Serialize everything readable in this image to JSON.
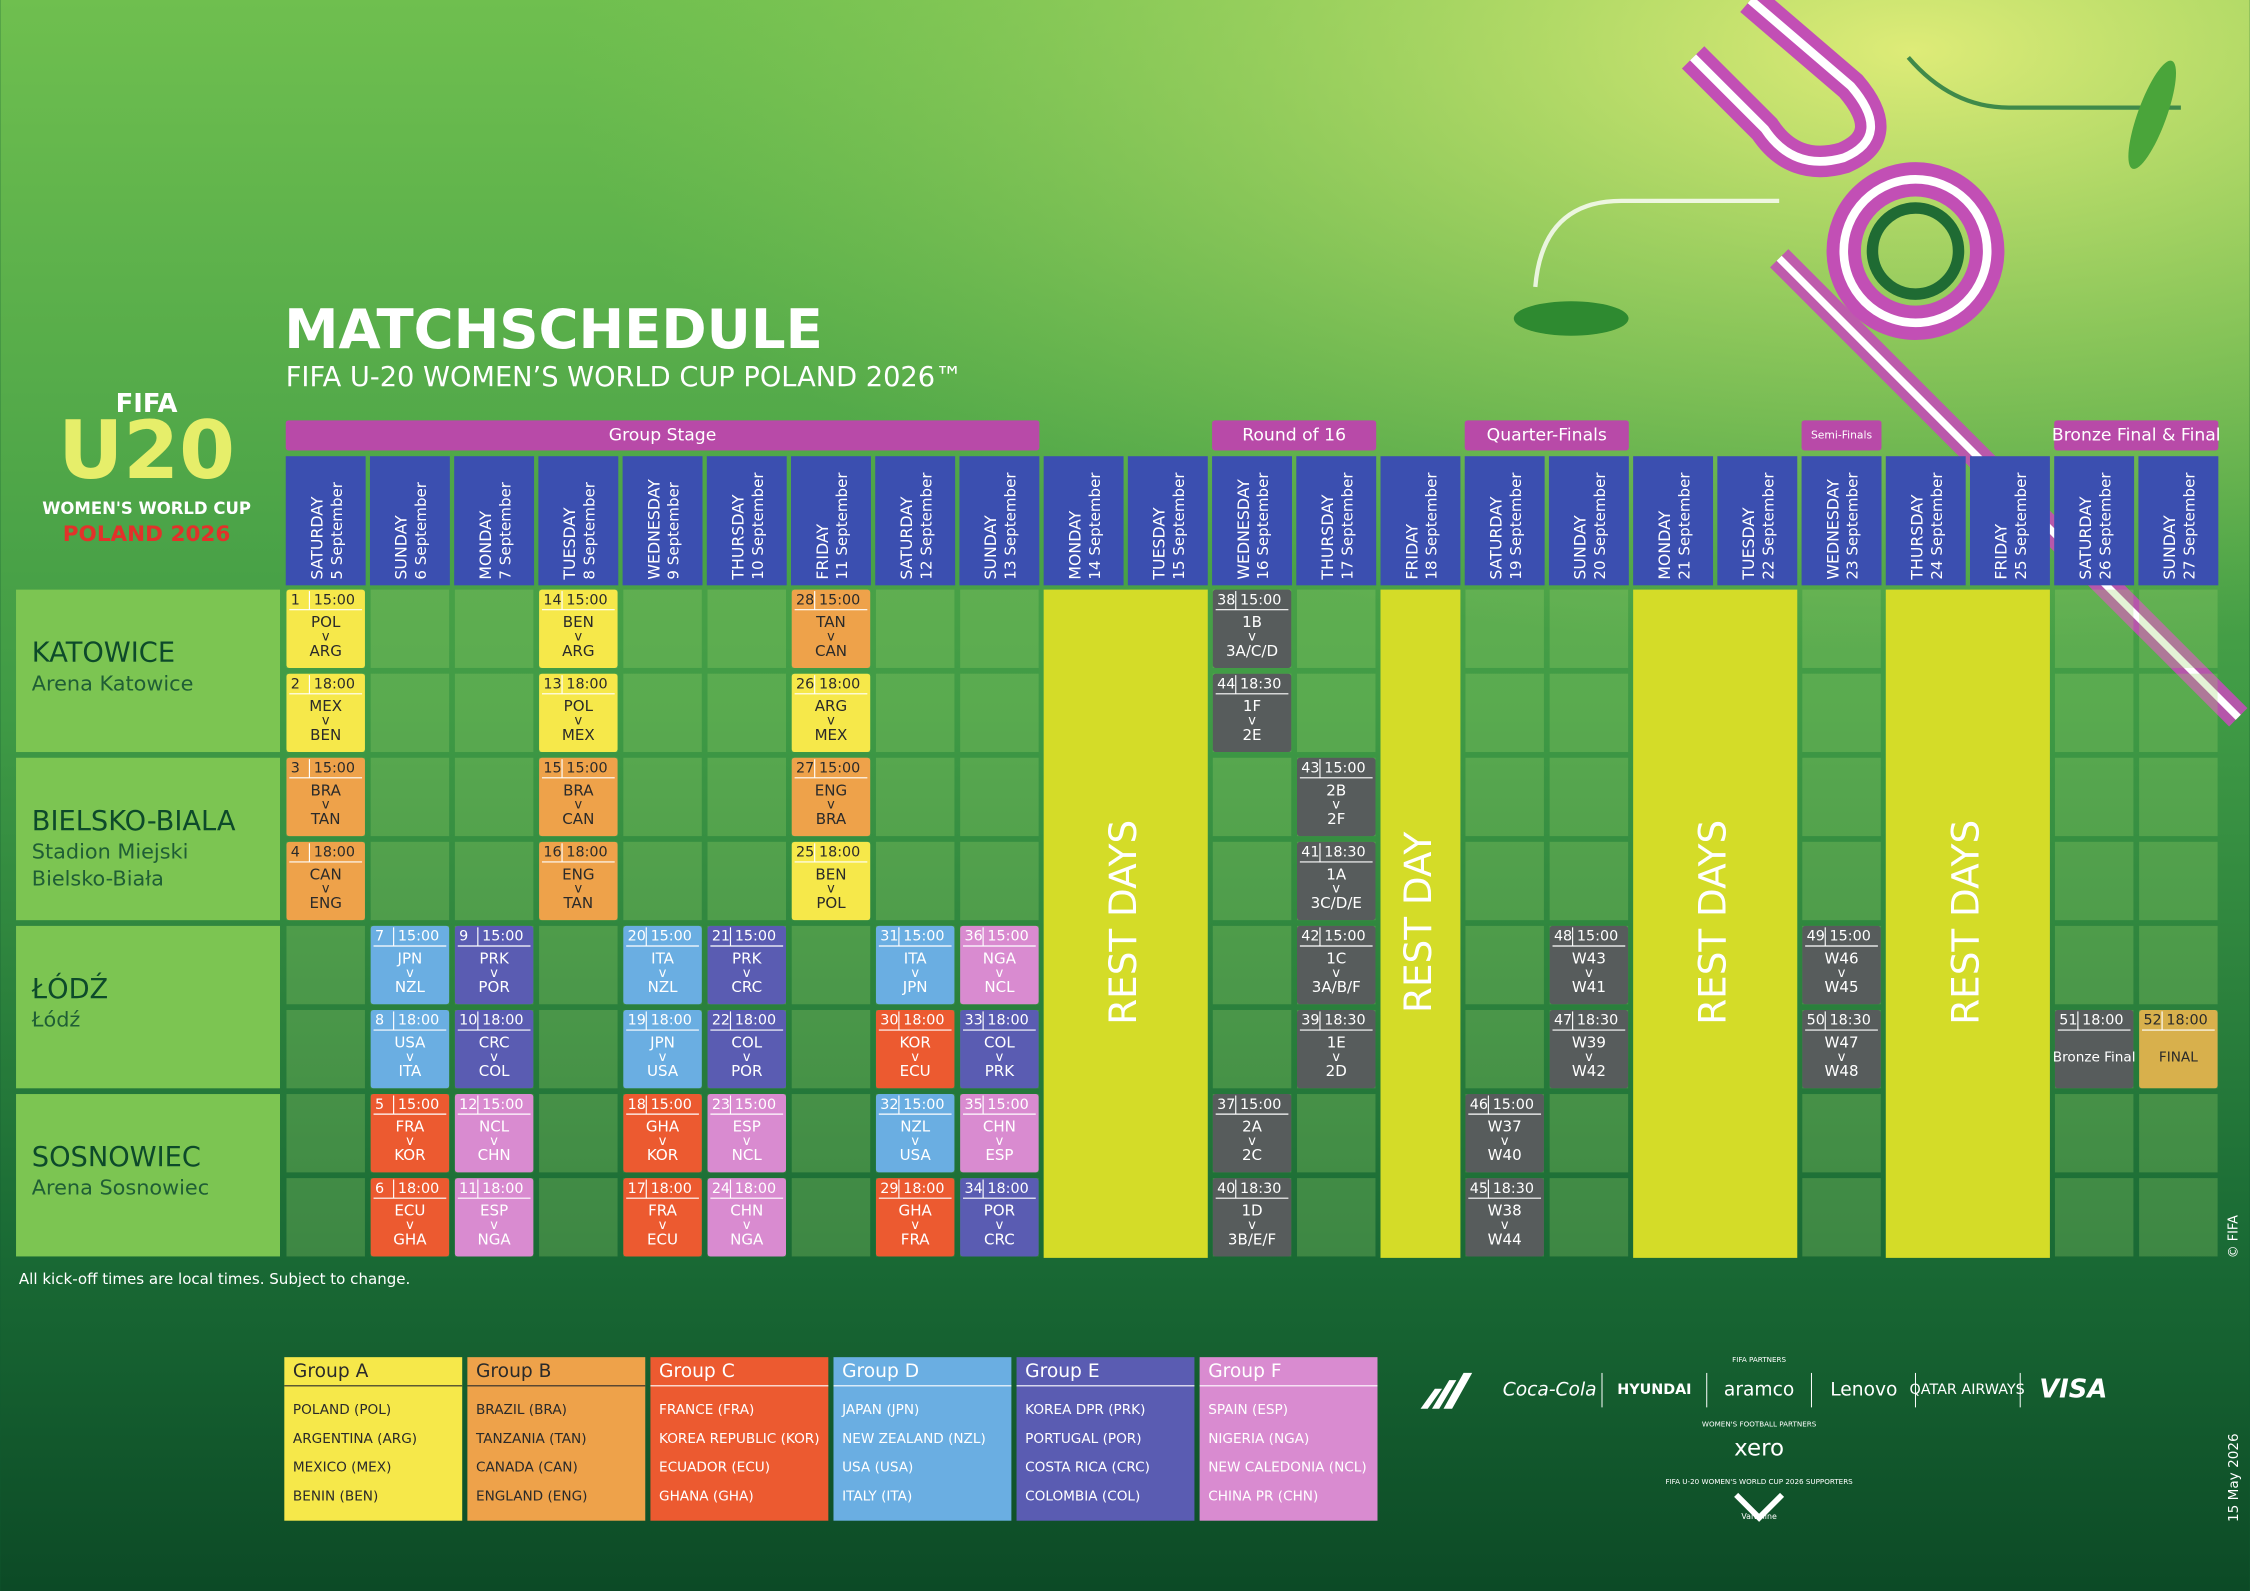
{
  "header": {
    "title": "MATCHSCHEDULE",
    "subtitle": "FIFA U-20 WOMEN’S WORLD CUP POLAND 2026™"
  },
  "logo": {
    "fifa": "FIFA",
    "u20": "U20",
    "event": "WOMEN'S WORLD CUP",
    "host": "POLAND 2026"
  },
  "versus": "v",
  "stages": [
    {
      "name": "Group Stage",
      "from": 0,
      "to": 8
    },
    {
      "name": "Round of 16",
      "from": 11,
      "to": 12
    },
    {
      "name": "Quarter-Finals",
      "from": 14,
      "to": 15
    },
    {
      "name": "Semi-Finals",
      "from": 18,
      "to": 18
    },
    {
      "name": "Bronze Final & Final",
      "from": 21,
      "to": 22
    }
  ],
  "days": [
    {
      "weekday": "SATURDAY",
      "date": "5 September"
    },
    {
      "weekday": "SUNDAY",
      "date": "6 September"
    },
    {
      "weekday": "MONDAY",
      "date": "7 September"
    },
    {
      "weekday": "TUESDAY",
      "date": "8 September"
    },
    {
      "weekday": "WEDNESDAY",
      "date": "9 September"
    },
    {
      "weekday": "THURSDAY",
      "date": "10 September"
    },
    {
      "weekday": "FRIDAY",
      "date": "11 September"
    },
    {
      "weekday": "SATURDAY",
      "date": "12 September"
    },
    {
      "weekday": "SUNDAY",
      "date": "13 September"
    },
    {
      "weekday": "MONDAY",
      "date": "14 September"
    },
    {
      "weekday": "TUESDAY",
      "date": "15 September"
    },
    {
      "weekday": "WEDNESDAY",
      "date": "16 September"
    },
    {
      "weekday": "THURSDAY",
      "date": "17 September"
    },
    {
      "weekday": "FRIDAY",
      "date": "18 September"
    },
    {
      "weekday": "SATURDAY",
      "date": "19 September"
    },
    {
      "weekday": "SUNDAY",
      "date": "20 September"
    },
    {
      "weekday": "MONDAY",
      "date": "21 September"
    },
    {
      "weekday": "TUESDAY",
      "date": "22 September"
    },
    {
      "weekday": "WEDNESDAY",
      "date": "23 September"
    },
    {
      "weekday": "THURSDAY",
      "date": "24 September"
    },
    {
      "weekday": "FRIDAY",
      "date": "25 September"
    },
    {
      "weekday": "SATURDAY",
      "date": "26 September"
    },
    {
      "weekday": "SUNDAY",
      "date": "27 September"
    }
  ],
  "venues": [
    {
      "name": "KATOWICE",
      "stadium": [
        "Arena Katowice"
      ]
    },
    {
      "name": "BIELSKO-BIALA",
      "stadium": [
        "Stadion Miejski",
        "Bielsko-Biała"
      ]
    },
    {
      "name": "ŁÓDŹ",
      "stadium": [
        "Łódź"
      ]
    },
    {
      "name": "SOSNOWIEC",
      "stadium": [
        "Arena Sosnowiec"
      ]
    }
  ],
  "rest": [
    {
      "label": "REST DAYS",
      "from": 9,
      "to": 10
    },
    {
      "label": "REST DAY",
      "from": 13,
      "to": 13
    },
    {
      "label": "REST DAYS",
      "from": 16,
      "to": 17
    },
    {
      "label": "REST DAYS",
      "from": 19,
      "to": 20
    }
  ],
  "knockout_color": "#575c5c",
  "matches": [
    {
      "no": 1,
      "time": "15:00",
      "home": "POL",
      "away": "ARG",
      "group": 0,
      "day": 0,
      "venue": 0,
      "slot": 0
    },
    {
      "no": 2,
      "time": "18:00",
      "home": "MEX",
      "away": "BEN",
      "group": 0,
      "day": 0,
      "venue": 0,
      "slot": 1
    },
    {
      "no": 3,
      "time": "15:00",
      "home": "BRA",
      "away": "TAN",
      "group": 1,
      "day": 0,
      "venue": 1,
      "slot": 0
    },
    {
      "no": 4,
      "time": "18:00",
      "home": "CAN",
      "away": "ENG",
      "group": 1,
      "day": 0,
      "venue": 1,
      "slot": 1
    },
    {
      "no": 7,
      "time": "15:00",
      "home": "JPN",
      "away": "NZL",
      "group": 3,
      "day": 1,
      "venue": 2,
      "slot": 0
    },
    {
      "no": 8,
      "time": "18:00",
      "home": "USA",
      "away": "ITA",
      "group": 3,
      "day": 1,
      "venue": 2,
      "slot": 1
    },
    {
      "no": 5,
      "time": "15:00",
      "home": "FRA",
      "away": "KOR",
      "group": 2,
      "day": 1,
      "venue": 3,
      "slot": 0
    },
    {
      "no": 6,
      "time": "18:00",
      "home": "ECU",
      "away": "GHA",
      "group": 2,
      "day": 1,
      "venue": 3,
      "slot": 1
    },
    {
      "no": 9,
      "time": "15:00",
      "home": "PRK",
      "away": "POR",
      "group": 4,
      "day": 2,
      "venue": 2,
      "slot": 0
    },
    {
      "no": 10,
      "time": "18:00",
      "home": "CRC",
      "away": "COL",
      "group": 4,
      "day": 2,
      "venue": 2,
      "slot": 1
    },
    {
      "no": 12,
      "time": "15:00",
      "home": "NCL",
      "away": "CHN",
      "group": 5,
      "day": 2,
      "venue": 3,
      "slot": 0
    },
    {
      "no": 11,
      "time": "18:00",
      "home": "ESP",
      "away": "NGA",
      "group": 5,
      "day": 2,
      "venue": 3,
      "slot": 1
    },
    {
      "no": 14,
      "time": "15:00",
      "home": "BEN",
      "away": "ARG",
      "group": 0,
      "day": 3,
      "venue": 0,
      "slot": 0
    },
    {
      "no": 13,
      "time": "18:00",
      "home": "POL",
      "away": "MEX",
      "group": 0,
      "day": 3,
      "venue": 0,
      "slot": 1
    },
    {
      "no": 15,
      "time": "15:00",
      "home": "BRA",
      "away": "CAN",
      "group": 1,
      "day": 3,
      "venue": 1,
      "slot": 0
    },
    {
      "no": 16,
      "time": "18:00",
      "home": "ENG",
      "away": "TAN",
      "group": 1,
      "day": 3,
      "venue": 1,
      "slot": 1
    },
    {
      "no": 20,
      "time": "15:00",
      "home": "ITA",
      "away": "NZL",
      "group": 3,
      "day": 4,
      "venue": 2,
      "slot": 0
    },
    {
      "no": 19,
      "time": "18:00",
      "home": "JPN",
      "away": "USA",
      "group": 3,
      "day": 4,
      "venue": 2,
      "slot": 1
    },
    {
      "no": 18,
      "time": "15:00",
      "home": "GHA",
      "away": "KOR",
      "group": 2,
      "day": 4,
      "venue": 3,
      "slot": 0
    },
    {
      "no": 17,
      "time": "18:00",
      "home": "FRA",
      "away": "ECU",
      "group": 2,
      "day": 4,
      "venue": 3,
      "slot": 1
    },
    {
      "no": 21,
      "time": "15:00",
      "home": "PRK",
      "away": "CRC",
      "group": 4,
      "day": 5,
      "venue": 2,
      "slot": 0
    },
    {
      "no": 22,
      "time": "18:00",
      "home": "COL",
      "away": "POR",
      "group": 4,
      "day": 5,
      "venue": 2,
      "slot": 1
    },
    {
      "no": 23,
      "time": "15:00",
      "home": "ESP",
      "away": "NCL",
      "group": 5,
      "day": 5,
      "venue": 3,
      "slot": 0
    },
    {
      "no": 24,
      "time": "18:00",
      "home": "CHN",
      "away": "NGA",
      "group": 5,
      "day": 5,
      "venue": 3,
      "slot": 1
    },
    {
      "no": 28,
      "time": "15:00",
      "home": "TAN",
      "away": "CAN",
      "group": 1,
      "day": 6,
      "venue": 0,
      "slot": 0
    },
    {
      "no": 26,
      "time": "18:00",
      "home": "ARG",
      "away": "MEX",
      "group": 0,
      "day": 6,
      "venue": 0,
      "slot": 1
    },
    {
      "no": 27,
      "time": "15:00",
      "home": "ENG",
      "away": "BRA",
      "group": 1,
      "day": 6,
      "venue": 1,
      "slot": 0
    },
    {
      "no": 25,
      "time": "18:00",
      "home": "BEN",
      "away": "POL",
      "group": 0,
      "day": 6,
      "venue": 1,
      "slot": 1
    },
    {
      "no": 31,
      "time": "15:00",
      "home": "ITA",
      "away": "JPN",
      "group": 3,
      "day": 7,
      "venue": 2,
      "slot": 0
    },
    {
      "no": 30,
      "time": "18:00",
      "home": "KOR",
      "away": "ECU",
      "group": 2,
      "day": 7,
      "venue": 2,
      "slot": 1
    },
    {
      "no": 32,
      "time": "15:00",
      "home": "NZL",
      "away": "USA",
      "group": 3,
      "day": 7,
      "venue": 3,
      "slot": 0
    },
    {
      "no": 29,
      "time": "18:00",
      "home": "GHA",
      "away": "FRA",
      "group": 2,
      "day": 7,
      "venue": 3,
      "slot": 1
    },
    {
      "no": 36,
      "time": "15:00",
      "home": "NGA",
      "away": "NCL",
      "group": 5,
      "day": 8,
      "venue": 2,
      "slot": 0
    },
    {
      "no": 33,
      "time": "18:00",
      "home": "COL",
      "away": "PRK",
      "group": 4,
      "day": 8,
      "venue": 2,
      "slot": 1
    },
    {
      "no": 35,
      "time": "15:00",
      "home": "CHN",
      "away": "ESP",
      "group": 5,
      "day": 8,
      "venue": 3,
      "slot": 0
    },
    {
      "no": 34,
      "time": "18:00",
      "home": "POR",
      "away": "CRC",
      "group": 4,
      "day": 8,
      "venue": 3,
      "slot": 1
    },
    {
      "no": 38,
      "time": "15:00",
      "home": "1B",
      "away": "3A/C/D",
      "day": 11,
      "venue": 0,
      "slot": 0
    },
    {
      "no": 44,
      "time": "18:30",
      "home": "1F",
      "away": "2E",
      "day": 11,
      "venue": 0,
      "slot": 1
    },
    {
      "no": 37,
      "time": "15:00",
      "home": "2A",
      "away": "2C",
      "day": 11,
      "venue": 3,
      "slot": 0
    },
    {
      "no": 40,
      "time": "18:30",
      "home": "1D",
      "away": "3B/E/F",
      "day": 11,
      "venue": 3,
      "slot": 1
    },
    {
      "no": 43,
      "time": "15:00",
      "home": "2B",
      "away": "2F",
      "day": 12,
      "venue": 1,
      "slot": 0
    },
    {
      "no": 41,
      "time": "18:30",
      "home": "1A",
      "away": "3C/D/E",
      "day": 12,
      "venue": 1,
      "slot": 1
    },
    {
      "no": 42,
      "time": "15:00",
      "home": "1C",
      "away": "3A/B/F",
      "day": 12,
      "venue": 2,
      "slot": 0
    },
    {
      "no": 39,
      "time": "18:30",
      "home": "1E",
      "away": "2D",
      "day": 12,
      "venue": 2,
      "slot": 1
    },
    {
      "no": 46,
      "time": "15:00",
      "home": "W37",
      "away": "W40",
      "day": 14,
      "venue": 3,
      "slot": 0
    },
    {
      "no": 45,
      "time": "18:30",
      "home": "W38",
      "away": "W44",
      "day": 14,
      "venue": 3,
      "slot": 1
    },
    {
      "no": 48,
      "time": "15:00",
      "home": "W43",
      "away": "W41",
      "day": 15,
      "venue": 2,
      "slot": 0
    },
    {
      "no": 47,
      "time": "18:30",
      "home": "W39",
      "away": "W42",
      "day": 15,
      "venue": 2,
      "slot": 1
    },
    {
      "no": 49,
      "time": "15:00",
      "home": "W46",
      "away": "W45",
      "day": 18,
      "venue": 2,
      "slot": 0
    },
    {
      "no": 50,
      "time": "18:30",
      "home": "W47",
      "away": "W48",
      "day": 18,
      "venue": 2,
      "slot": 1
    },
    {
      "no": 51,
      "time": "18:00",
      "label": "Bronze Final",
      "day": 21,
      "venue": 2,
      "slot": 1
    },
    {
      "no": 52,
      "time": "18:00",
      "label": "FINAL",
      "color": "#d8b04c",
      "day": 22,
      "venue": 2,
      "slot": 1
    }
  ],
  "footnote": "All kick-off times are local times. Subject to change.",
  "copyright": "© FIFA",
  "edition_date": "15 May 2026",
  "groups": [
    {
      "name": "Group A",
      "color": "#f6e84a",
      "text_color": "#2a2a2a",
      "teams": [
        "POLAND (POL)",
        "ARGENTINA (ARG)",
        "MEXICO (MEX)",
        "BENIN (BEN)"
      ]
    },
    {
      "name": "Group B",
      "color": "#eea24a",
      "text_color": "#2a2a2a",
      "teams": [
        "BRAZIL (BRA)",
        "TANZANIA (TAN)",
        "CANADA (CAN)",
        "ENGLAND (ENG)"
      ]
    },
    {
      "name": "Group C",
      "color": "#ec5a30",
      "text_color": "#ffffff",
      "teams": [
        "FRANCE (FRA)",
        "KOREA REPUBLIC (KOR)",
        "ECUADOR (ECU)",
        "GHANA (GHA)"
      ]
    },
    {
      "name": "Group D",
      "color": "#6aaee2",
      "text_color": "#ffffff",
      "teams": [
        "JAPAN (JPN)",
        "NEW ZEALAND (NZL)",
        "USA (USA)",
        "ITALY (ITA)"
      ]
    },
    {
      "name": "Group E",
      "color": "#5a5cb2",
      "text_color": "#ffffff",
      "teams": [
        "KOREA DPR (PRK)",
        "PORTUGAL (POR)",
        "COSTA RICA (CRC)",
        "COLOMBIA (COL)"
      ]
    },
    {
      "name": "Group F",
      "color": "#d98bd0",
      "text_color": "#ffffff",
      "teams": [
        "SPAIN (ESP)",
        "NIGERIA (NGA)",
        "NEW CALEDONIA (NCL)",
        "CHINA PR (CHN)"
      ]
    }
  ],
  "sponsors": {
    "partners_label": "FIFA PARTNERS",
    "partners": [
      "Coca-Cola",
      "HYUNDAI",
      "aramco",
      "Lenovo",
      "QATAR AIRWAYS",
      "VISA"
    ],
    "womens_label": "WOMEN'S FOOTBALL PARTNERS",
    "womens": "xero",
    "supporters_label": "FIFA U-20 WOMEN'S WORLD CUP 2026 SUPPORTERS",
    "supporters": "Valvoline"
  }
}
